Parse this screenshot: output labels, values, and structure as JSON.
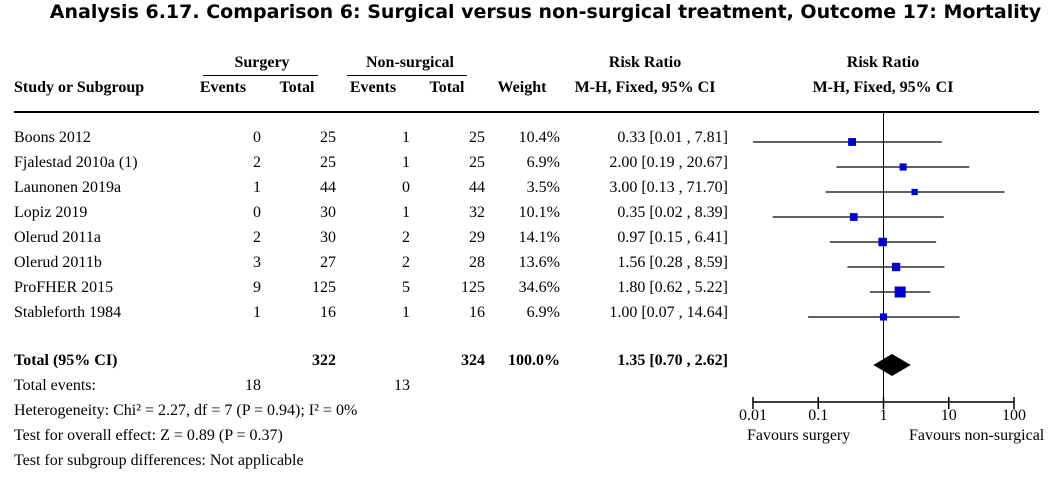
{
  "title": "Analysis 6.17.   Comparison 6: Surgical versus non-surgical treatment, Outcome 17: Mortality",
  "header": {
    "group1": "Surgery",
    "group2": "Non-surgical",
    "rr_left_top": "Risk Ratio",
    "rr_right_top": "Risk Ratio",
    "study": "Study or Subgroup",
    "events1": "Events",
    "total1": "Total",
    "events2": "Events",
    "total2": "Total",
    "weight": "Weight",
    "rr_left_bottom": "M-H, Fixed, 95% CI",
    "rr_right_bottom": "M-H, Fixed, 95% CI"
  },
  "total_row": {
    "label": "Total (95% CI)",
    "total1": "322",
    "total2": "324",
    "weight": "100.0%",
    "ci": "1.35 [0.70 , 2.62]"
  },
  "total_events": {
    "label": "Total events:",
    "events1": "18",
    "events2": "13"
  },
  "footnotes": {
    "heterogeneity": "Heterogeneity: Chi² = 2.27, df = 7 (P = 0.94); I² = 0%",
    "overall": "Test for overall effect: Z = 0.89 (P = 0.37)",
    "subgroup": "Test for subgroup differences: Not applicable"
  },
  "axis": {
    "ticks": [
      "0.01",
      "0.1",
      "1",
      "10",
      "100"
    ],
    "favours_left": "Favours surgery",
    "favours_right": "Favours non-surgical"
  },
  "colors": {
    "marker": "#0000cc",
    "line": "#000000"
  },
  "chart_data": {
    "type": "forest",
    "scale": "log",
    "xlim": [
      0.01,
      100
    ],
    "studies": [
      {
        "name": "Boons 2012",
        "events1": "0",
        "total1": "25",
        "events2": "1",
        "total2": "25",
        "weight": "10.4%",
        "ci": "0.33 [0.01 , 7.81]",
        "rr": 0.33,
        "lo": 0.01,
        "hi": 7.81,
        "w": 10.4
      },
      {
        "name": "Fjalestad 2010a (1)",
        "events1": "2",
        "total1": "25",
        "events2": "1",
        "total2": "25",
        "weight": "6.9%",
        "ci": "2.00 [0.19 , 20.67]",
        "rr": 2.0,
        "lo": 0.19,
        "hi": 20.67,
        "w": 6.9
      },
      {
        "name": "Launonen 2019a",
        "events1": "1",
        "total1": "44",
        "events2": "0",
        "total2": "44",
        "weight": "3.5%",
        "ci": "3.00 [0.13 , 71.70]",
        "rr": 3.0,
        "lo": 0.13,
        "hi": 71.7,
        "w": 3.5
      },
      {
        "name": "Lopiz 2019",
        "events1": "0",
        "total1": "30",
        "events2": "1",
        "total2": "32",
        "weight": "10.1%",
        "ci": "0.35 [0.02 , 8.39]",
        "rr": 0.35,
        "lo": 0.02,
        "hi": 8.39,
        "w": 10.1
      },
      {
        "name": "Olerud 2011a",
        "events1": "2",
        "total1": "30",
        "events2": "2",
        "total2": "29",
        "weight": "14.1%",
        "ci": "0.97 [0.15 , 6.41]",
        "rr": 0.97,
        "lo": 0.15,
        "hi": 6.41,
        "w": 14.1
      },
      {
        "name": "Olerud 2011b",
        "events1": "3",
        "total1": "27",
        "events2": "2",
        "total2": "28",
        "weight": "13.6%",
        "ci": "1.56 [0.28 , 8.59]",
        "rr": 1.56,
        "lo": 0.28,
        "hi": 8.59,
        "w": 13.6
      },
      {
        "name": "ProFHER 2015",
        "events1": "9",
        "total1": "125",
        "events2": "5",
        "total2": "125",
        "weight": "34.6%",
        "ci": "1.80 [0.62 , 5.22]",
        "rr": 1.8,
        "lo": 0.62,
        "hi": 5.22,
        "w": 34.6
      },
      {
        "name": "Stableforth 1984",
        "events1": "1",
        "total1": "16",
        "events2": "1",
        "total2": "16",
        "weight": "6.9%",
        "ci": "1.00 [0.07 , 14.64]",
        "rr": 1.0,
        "lo": 0.07,
        "hi": 14.64,
        "w": 6.9
      }
    ],
    "overall": {
      "rr": 1.35,
      "lo": 0.7,
      "hi": 2.62
    }
  }
}
